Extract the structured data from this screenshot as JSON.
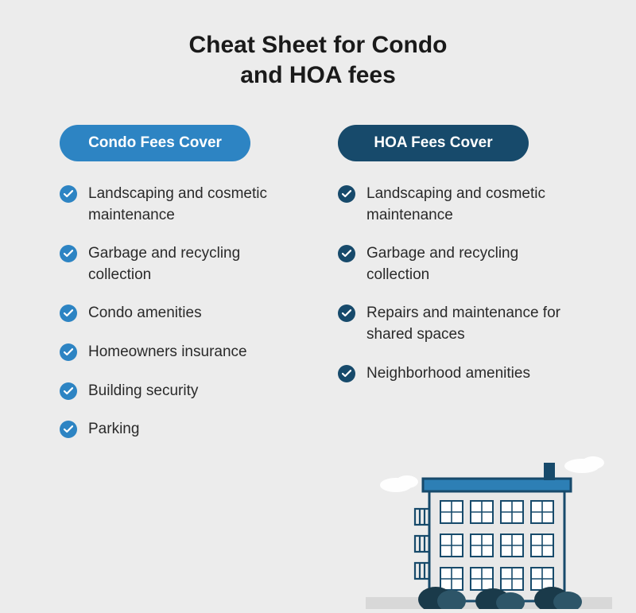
{
  "type": "infographic",
  "background_color": "#ececec",
  "title": {
    "line1": "Cheat Sheet for Condo",
    "line2": "and HOA fees",
    "fontsize": 30,
    "fontweight": 600,
    "color": "#1a1a1a"
  },
  "columns": {
    "left": {
      "pill_label": "Condo Fees Cover",
      "pill_color": "#2d84c3",
      "check_color": "#2d84c3",
      "items": [
        "Landscaping and cosmetic maintenance",
        "Garbage and recycling collection",
        "Condo amenities",
        "Homeowners insurance",
        "Building security",
        "Parking"
      ]
    },
    "right": {
      "pill_label": "HOA Fees Cover",
      "pill_color": "#174a6b",
      "check_color": "#174a6b",
      "items": [
        "Landscaping and cosmetic maintenance",
        "Garbage and recycling collection",
        "Repairs and maintenance for shared spaces",
        "Neighborhood amenities"
      ]
    }
  },
  "item_text": {
    "fontsize": 19,
    "color": "#2a2a2a"
  },
  "illustration": {
    "building_wall": "#e8e8e8",
    "building_roof": "#2d7fb5",
    "building_outline": "#174a6b",
    "window_frame": "#174a6b",
    "window_fill": "#ffffff",
    "chimney": "#174a6b",
    "bush_dark": "#1a3a4a",
    "bush_mid": "#2d5568",
    "cloud": "#ffffff",
    "ground": "#d8d8d8"
  }
}
